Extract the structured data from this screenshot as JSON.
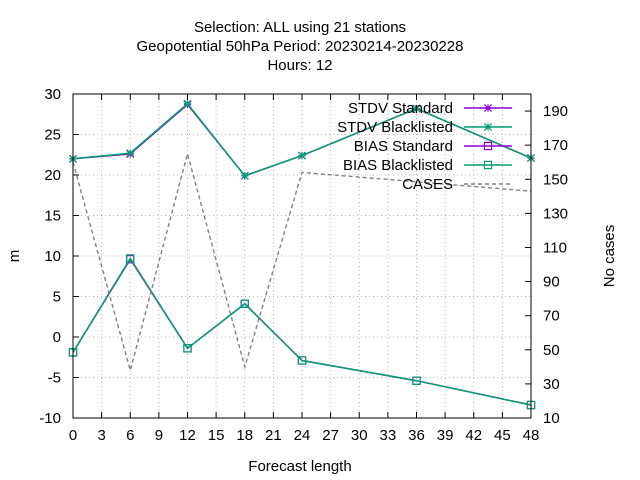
{
  "chart_data": {
    "type": "line",
    "title_lines": [
      "Selection: ALL using    21 stations",
      "Geopotential 50hPa   Period: 20230214-20230228",
      "Hours:  12"
    ],
    "xlabel": "Forecast length",
    "ylabel": "m",
    "y2label": "No cases",
    "xlim": [
      0,
      48
    ],
    "ylim": [
      -10,
      30
    ],
    "y2lim": [
      10,
      200
    ],
    "xticks": [
      0,
      3,
      6,
      9,
      12,
      15,
      18,
      21,
      24,
      27,
      30,
      33,
      36,
      39,
      42,
      45,
      48
    ],
    "yticks": [
      -10,
      -5,
      0,
      5,
      10,
      15,
      20,
      25,
      30
    ],
    "y2ticks": [
      10,
      30,
      50,
      70,
      90,
      110,
      130,
      150,
      170,
      190
    ],
    "grid": true,
    "legend_position": "top-right",
    "series": [
      {
        "name": "STDV Standard",
        "axis": "y",
        "marker": "star",
        "color": "#9400d3",
        "x": [
          0,
          6,
          12,
          18,
          24,
          36,
          48
        ],
        "values": [
          22.0,
          22.6,
          28.7,
          19.9,
          22.4,
          28.2,
          22.1
        ]
      },
      {
        "name": "STDV Blacklisted",
        "axis": "y",
        "marker": "star",
        "color": "#009e73",
        "x": [
          0,
          6,
          12,
          18,
          24,
          36,
          48
        ],
        "values": [
          22.0,
          22.7,
          28.8,
          19.9,
          22.4,
          28.2,
          22.1
        ]
      },
      {
        "name": "BIAS Standard",
        "axis": "y",
        "marker": "square",
        "color": "#9400d3",
        "x": [
          0,
          6,
          12,
          18,
          24,
          36,
          48
        ],
        "values": [
          -1.9,
          9.6,
          -1.4,
          4.1,
          -2.9,
          -5.4,
          -8.4
        ]
      },
      {
        "name": "BIAS Blacklisted",
        "axis": "y",
        "marker": "square",
        "color": "#009e73",
        "x": [
          0,
          6,
          12,
          18,
          24,
          36,
          48
        ],
        "values": [
          -1.9,
          9.7,
          -1.4,
          4.1,
          -2.9,
          -5.4,
          -8.4
        ]
      },
      {
        "name": "CASES",
        "axis": "y2",
        "marker": "none",
        "dashed": true,
        "color": "#808080",
        "x": [
          0,
          6,
          12,
          18,
          24,
          48
        ],
        "values": [
          160,
          38,
          165,
          40,
          154,
          143
        ]
      }
    ]
  }
}
